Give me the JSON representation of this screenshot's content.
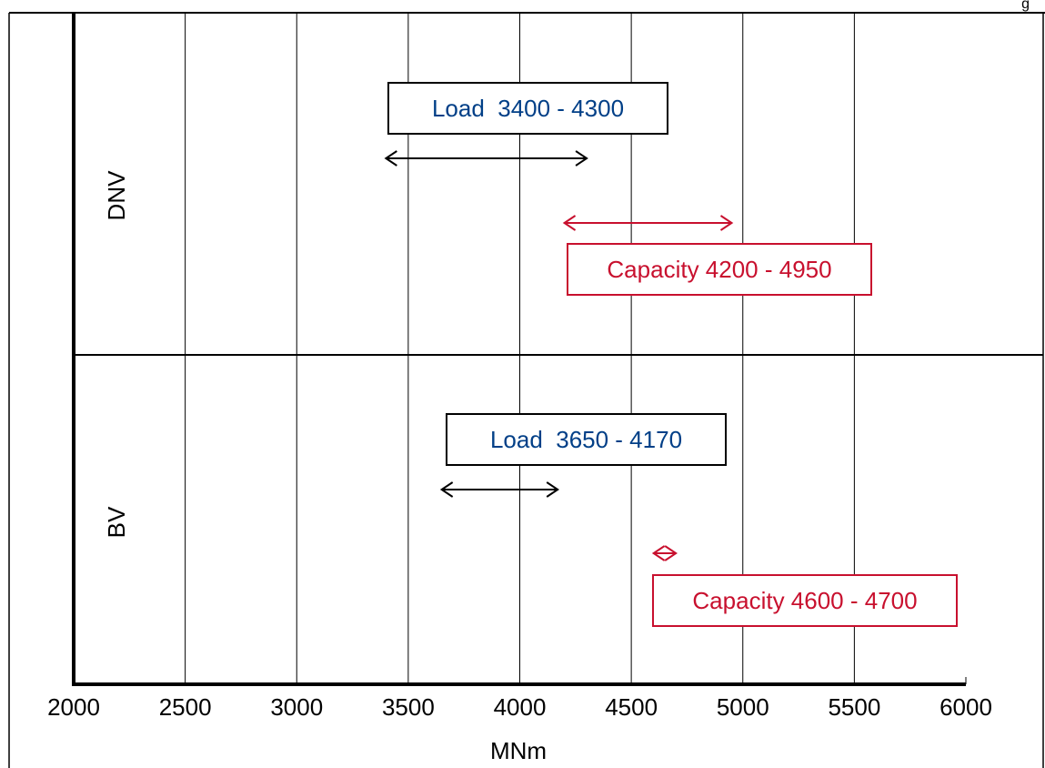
{
  "colors": {
    "load": "#003f87",
    "capacity": "#c8102e",
    "axis": "#000000",
    "grid": "#000000"
  },
  "corner_text": "g",
  "chart_data": {
    "type": "range",
    "xlabel": "MNm",
    "xlim": [
      2000,
      6000
    ],
    "xticks": [
      2000,
      2500,
      3000,
      3500,
      4000,
      4500,
      5000,
      5500,
      6000
    ],
    "grid": true,
    "rows": [
      {
        "label": "DNV",
        "ranges": [
          {
            "kind": "load",
            "label": "Load  3400 - 4300",
            "from": 3400,
            "to": 4300
          },
          {
            "kind": "capacity",
            "label": "Capacity 4200 - 4950",
            "from": 4200,
            "to": 4950
          }
        ]
      },
      {
        "label": "BV",
        "ranges": [
          {
            "kind": "load",
            "label": "Load  3650 - 4170",
            "from": 3650,
            "to": 4170
          },
          {
            "kind": "capacity",
            "label": "Capacity 4600 - 4700",
            "from": 4600,
            "to": 4700
          }
        ]
      }
    ]
  }
}
